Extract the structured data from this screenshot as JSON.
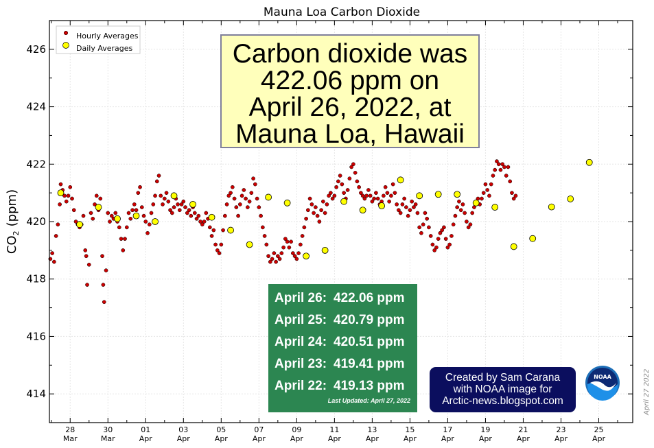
{
  "chart_data": {
    "type": "scatter",
    "title": "Mauna Loa Carbon Dioxide",
    "xlabel": "",
    "ylabel_main": "CO",
    "ylabel_sub": "2",
    "ylabel_unit": "(ppm)",
    "ylim": [
      413,
      427
    ],
    "yticks": [
      414,
      416,
      418,
      420,
      422,
      424,
      426
    ],
    "xlim": [
      26.9,
      57.8
    ],
    "xticks": [
      {
        "x": 28,
        "day": "28",
        "month": "Mar"
      },
      {
        "x": 30,
        "day": "30",
        "month": "Mar"
      },
      {
        "x": 32,
        "day": "01",
        "month": "Apr"
      },
      {
        "x": 34,
        "day": "03",
        "month": "Apr"
      },
      {
        "x": 36,
        "day": "05",
        "month": "Apr"
      },
      {
        "x": 38,
        "day": "07",
        "month": "Apr"
      },
      {
        "x": 40,
        "day": "09",
        "month": "Apr"
      },
      {
        "x": 42,
        "day": "11",
        "month": "Apr"
      },
      {
        "x": 44,
        "day": "13",
        "month": "Apr"
      },
      {
        "x": 46,
        "day": "15",
        "month": "Apr"
      },
      {
        "x": 48,
        "day": "17",
        "month": "Apr"
      },
      {
        "x": 50,
        "day": "19",
        "month": "Apr"
      },
      {
        "x": 52,
        "day": "21",
        "month": "Apr"
      },
      {
        "x": 54,
        "day": "23",
        "month": "Apr"
      },
      {
        "x": 56,
        "day": "25",
        "month": "Apr"
      }
    ],
    "grid": true,
    "legend_position": "top-left",
    "legend": [
      "Hourly Averages",
      "Daily Averages"
    ],
    "series": [
      {
        "name": "Hourly Averages",
        "color": "#cc0000",
        "values": [
          [
            26.95,
            418.7
          ],
          [
            27.05,
            418.9
          ],
          [
            27.15,
            418.6
          ],
          [
            27.25,
            419.5
          ],
          [
            27.35,
            419.9
          ],
          [
            27.45,
            420.6
          ],
          [
            27.5,
            421.3
          ],
          [
            27.6,
            421.1
          ],
          [
            27.7,
            420.9
          ],
          [
            27.8,
            420.7
          ],
          [
            27.9,
            420.9
          ],
          [
            28.0,
            421.2
          ],
          [
            28.1,
            420.8
          ],
          [
            28.2,
            420.4
          ],
          [
            28.3,
            420.0
          ],
          [
            28.4,
            419.9
          ],
          [
            28.5,
            419.8
          ],
          [
            28.6,
            419.9
          ],
          [
            28.7,
            420.2
          ],
          [
            28.8,
            419.0
          ],
          [
            28.85,
            418.8
          ],
          [
            28.9,
            417.8
          ],
          [
            29.0,
            418.5
          ],
          [
            29.1,
            420.3
          ],
          [
            29.2,
            420.1
          ],
          [
            29.3,
            420.6
          ],
          [
            29.4,
            420.9
          ],
          [
            29.5,
            420.4
          ],
          [
            29.6,
            420.8
          ],
          [
            29.7,
            418.8
          ],
          [
            29.75,
            417.8
          ],
          [
            29.8,
            417.2
          ],
          [
            29.9,
            418.3
          ],
          [
            30.0,
            420.3
          ],
          [
            30.1,
            420.0
          ],
          [
            30.2,
            420.2
          ],
          [
            30.3,
            420.1
          ],
          [
            30.4,
            420.3
          ],
          [
            30.5,
            420.0
          ],
          [
            30.6,
            419.8
          ],
          [
            30.7,
            419.4
          ],
          [
            30.8,
            419.0
          ],
          [
            30.9,
            419.4
          ],
          [
            31.0,
            419.8
          ],
          [
            31.1,
            420.3
          ],
          [
            31.2,
            420.1
          ],
          [
            31.3,
            420.4
          ],
          [
            31.4,
            420.6
          ],
          [
            31.5,
            420.4
          ],
          [
            31.6,
            421.0
          ],
          [
            31.7,
            421.2
          ],
          [
            31.8,
            420.5
          ],
          [
            31.9,
            420.2
          ],
          [
            32.0,
            420.0
          ],
          [
            32.1,
            419.6
          ],
          [
            32.2,
            419.9
          ],
          [
            32.3,
            420.3
          ],
          [
            32.4,
            420.6
          ],
          [
            32.5,
            420.9
          ],
          [
            32.6,
            421.4
          ],
          [
            32.7,
            421.6
          ],
          [
            32.8,
            420.9
          ],
          [
            32.9,
            420.6
          ],
          [
            33.0,
            420.8
          ],
          [
            33.1,
            421.0
          ],
          [
            33.2,
            420.7
          ],
          [
            33.3,
            420.4
          ],
          [
            33.4,
            420.3
          ],
          [
            33.5,
            420.5
          ],
          [
            33.6,
            420.8
          ],
          [
            33.7,
            420.6
          ],
          [
            33.8,
            420.4
          ],
          [
            33.9,
            420.6
          ],
          [
            34.0,
            420.7
          ],
          [
            34.1,
            420.5
          ],
          [
            34.2,
            420.3
          ],
          [
            34.3,
            420.4
          ],
          [
            34.4,
            420.2
          ],
          [
            34.5,
            420.5
          ],
          [
            34.6,
            420.3
          ],
          [
            34.7,
            420.1
          ],
          [
            34.8,
            420.2
          ],
          [
            34.9,
            420.0
          ],
          [
            35.0,
            419.9
          ],
          [
            35.1,
            420.0
          ],
          [
            35.2,
            420.3
          ],
          [
            35.3,
            420.1
          ],
          [
            35.4,
            419.8
          ],
          [
            35.5,
            419.5
          ],
          [
            35.6,
            419.7
          ],
          [
            35.7,
            419.2
          ],
          [
            35.8,
            419.0
          ],
          [
            35.9,
            418.9
          ],
          [
            36.0,
            419.2
          ],
          [
            36.1,
            419.7
          ],
          [
            36.2,
            420.2
          ],
          [
            36.3,
            420.6
          ],
          [
            36.4,
            420.9
          ],
          [
            36.5,
            421.0
          ],
          [
            36.6,
            421.2
          ],
          [
            36.7,
            420.8
          ],
          [
            36.8,
            420.5
          ],
          [
            36.9,
            420.2
          ],
          [
            37.0,
            420.6
          ],
          [
            37.1,
            420.9
          ],
          [
            37.2,
            421.1
          ],
          [
            37.3,
            420.8
          ],
          [
            37.4,
            420.5
          ],
          [
            37.5,
            420.7
          ],
          [
            37.6,
            421.0
          ],
          [
            37.7,
            421.5
          ],
          [
            37.8,
            421.3
          ],
          [
            37.9,
            420.8
          ],
          [
            38.0,
            420.5
          ],
          [
            38.1,
            420.2
          ],
          [
            38.2,
            419.8
          ],
          [
            38.3,
            419.5
          ],
          [
            38.4,
            419.2
          ],
          [
            38.5,
            418.8
          ],
          [
            38.6,
            418.6
          ],
          [
            38.7,
            418.7
          ],
          [
            38.8,
            418.9
          ],
          [
            38.9,
            418.6
          ],
          [
            39.0,
            418.8
          ],
          [
            39.1,
            418.7
          ],
          [
            39.2,
            418.9
          ],
          [
            39.3,
            419.1
          ],
          [
            39.4,
            419.4
          ],
          [
            39.5,
            419.3
          ],
          [
            39.6,
            419.1
          ],
          [
            39.7,
            419.3
          ],
          [
            39.8,
            418.9
          ],
          [
            39.9,
            418.8
          ],
          [
            40.0,
            418.7
          ],
          [
            40.1,
            418.9
          ],
          [
            40.2,
            419.2
          ],
          [
            40.3,
            419.5
          ],
          [
            40.4,
            419.8
          ],
          [
            40.5,
            420.1
          ],
          [
            40.6,
            420.4
          ],
          [
            40.7,
            420.8
          ],
          [
            40.8,
            420.6
          ],
          [
            40.9,
            420.3
          ],
          [
            41.0,
            420.5
          ],
          [
            41.1,
            420.2
          ],
          [
            41.2,
            420.0
          ],
          [
            41.3,
            420.4
          ],
          [
            41.4,
            420.7
          ],
          [
            41.5,
            420.3
          ],
          [
            41.6,
            420.6
          ],
          [
            41.7,
            420.9
          ],
          [
            41.8,
            421.0
          ],
          [
            41.9,
            420.8
          ],
          [
            42.0,
            420.9
          ],
          [
            42.1,
            421.2
          ],
          [
            42.2,
            421.4
          ],
          [
            42.3,
            421.6
          ],
          [
            42.4,
            421.3
          ],
          [
            42.5,
            421.0
          ],
          [
            42.6,
            420.8
          ],
          [
            42.7,
            421.1
          ],
          [
            42.8,
            421.5
          ],
          [
            42.9,
            421.9
          ],
          [
            43.0,
            422.0
          ],
          [
            43.1,
            421.7
          ],
          [
            43.2,
            421.4
          ],
          [
            43.3,
            421.2
          ],
          [
            43.4,
            421.0
          ],
          [
            43.5,
            420.9
          ],
          [
            43.6,
            420.8
          ],
          [
            43.7,
            420.9
          ],
          [
            43.8,
            421.1
          ],
          [
            43.9,
            420.9
          ],
          [
            44.0,
            420.7
          ],
          [
            44.1,
            420.8
          ],
          [
            44.2,
            421.0
          ],
          [
            44.3,
            420.8
          ],
          [
            44.4,
            420.6
          ],
          [
            44.5,
            420.7
          ],
          [
            44.6,
            420.9
          ],
          [
            44.7,
            421.2
          ],
          [
            44.8,
            421.0
          ],
          [
            44.9,
            420.7
          ],
          [
            45.0,
            420.9
          ],
          [
            45.1,
            421.3
          ],
          [
            45.2,
            421.0
          ],
          [
            45.3,
            420.6
          ],
          [
            45.4,
            420.4
          ],
          [
            45.5,
            420.3
          ],
          [
            45.6,
            420.6
          ],
          [
            45.7,
            420.8
          ],
          [
            45.8,
            420.5
          ],
          [
            45.9,
            420.2
          ],
          [
            46.0,
            420.4
          ],
          [
            46.1,
            420.7
          ],
          [
            46.2,
            420.5
          ],
          [
            46.3,
            420.6
          ],
          [
            46.4,
            420.3
          ],
          [
            46.5,
            419.8
          ],
          [
            46.6,
            419.6
          ],
          [
            46.7,
            419.9
          ],
          [
            46.8,
            420.3
          ],
          [
            46.9,
            420.1
          ],
          [
            47.0,
            419.8
          ],
          [
            47.1,
            419.5
          ],
          [
            47.2,
            419.2
          ],
          [
            47.3,
            419.0
          ],
          [
            47.4,
            419.1
          ],
          [
            47.5,
            419.4
          ],
          [
            47.6,
            419.6
          ],
          [
            47.7,
            419.7
          ],
          [
            47.8,
            419.8
          ],
          [
            47.9,
            419.4
          ],
          [
            48.0,
            419.1
          ],
          [
            48.1,
            419.2
          ],
          [
            48.2,
            419.5
          ],
          [
            48.3,
            419.9
          ],
          [
            48.4,
            420.2
          ],
          [
            48.5,
            420.5
          ],
          [
            48.6,
            420.7
          ],
          [
            48.7,
            420.4
          ],
          [
            48.8,
            420.6
          ],
          [
            48.9,
            420.3
          ],
          [
            49.0,
            420.0
          ],
          [
            49.1,
            419.8
          ],
          [
            49.2,
            419.9
          ],
          [
            49.3,
            420.3
          ],
          [
            49.4,
            420.5
          ],
          [
            49.5,
            420.7
          ],
          [
            49.6,
            420.8
          ],
          [
            49.7,
            420.6
          ],
          [
            49.8,
            420.8
          ],
          [
            49.9,
            421.0
          ],
          [
            50.0,
            421.3
          ],
          [
            50.1,
            421.1
          ],
          [
            50.2,
            420.9
          ],
          [
            50.3,
            421.3
          ],
          [
            50.4,
            421.6
          ],
          [
            50.5,
            421.8
          ],
          [
            50.6,
            422.1
          ],
          [
            50.7,
            422.0
          ],
          [
            50.8,
            421.8
          ],
          [
            50.9,
            422.0
          ],
          [
            51.0,
            421.9
          ],
          [
            51.1,
            421.6
          ],
          [
            51.2,
            421.9
          ],
          [
            51.3,
            421.4
          ],
          [
            51.4,
            421.0
          ],
          [
            51.5,
            420.8
          ],
          [
            51.6,
            420.9
          ]
        ]
      },
      {
        "name": "Daily Averages",
        "color": "#ffff00",
        "values": [
          [
            27.5,
            421.0
          ],
          [
            28.5,
            419.9
          ],
          [
            29.5,
            420.5
          ],
          [
            30.5,
            420.1
          ],
          [
            31.5,
            420.2
          ],
          [
            32.5,
            420.0
          ],
          [
            33.5,
            420.9
          ],
          [
            34.5,
            420.6
          ],
          [
            35.5,
            420.15
          ],
          [
            36.5,
            419.7
          ],
          [
            37.5,
            419.2
          ],
          [
            38.5,
            420.85
          ],
          [
            39.5,
            420.65
          ],
          [
            40.5,
            418.8
          ],
          [
            41.5,
            419.0
          ],
          [
            42.5,
            420.7
          ],
          [
            43.5,
            420.4
          ],
          [
            44.5,
            420.55
          ],
          [
            45.5,
            421.45
          ],
          [
            46.5,
            420.9
          ],
          [
            47.5,
            420.95
          ],
          [
            48.5,
            420.95
          ],
          [
            49.5,
            420.65
          ],
          [
            50.5,
            420.5
          ],
          [
            51.5,
            419.13
          ],
          [
            52.5,
            419.41
          ],
          [
            53.5,
            420.51
          ],
          [
            54.5,
            420.79
          ],
          [
            55.5,
            422.06
          ]
        ]
      }
    ]
  },
  "headline": {
    "lines": [
      "Carbon dioxide was",
      "422.06 ppm on",
      "April 26, 2022, at",
      " Mauna Loa, Hawaii"
    ]
  },
  "recent_values": {
    "rows": [
      {
        "label": "April 26:",
        "value": "422.06 ppm"
      },
      {
        "label": "April 25:",
        "value": "420.79 ppm"
      },
      {
        "label": "April 24:",
        "value": "420.51 ppm"
      },
      {
        "label": "April 23:",
        "value": "419.41 ppm"
      },
      {
        "label": "April 22:",
        "value": "419.13 ppm"
      }
    ],
    "last_updated": "Last Updated: April 27, 2022"
  },
  "credit": {
    "lines": [
      "Created by Sam Carana",
      "with NOAA image for",
      "Arctic-news.blogspot.com"
    ]
  },
  "logo": {
    "text": "NOAA"
  },
  "side_stamp": "April 27 2022"
}
